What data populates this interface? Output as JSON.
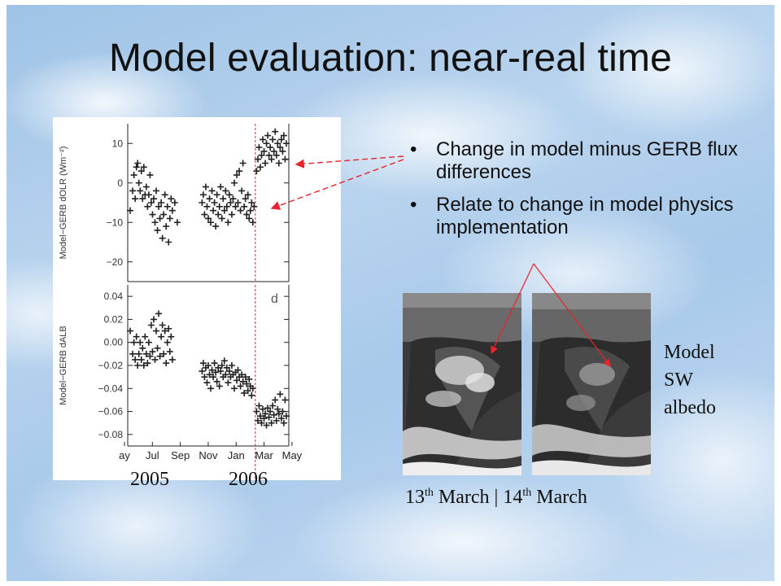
{
  "slide": {
    "title": "Model evaluation: near-real time",
    "bullets": [
      "Change in model minus GERB flux differences",
      "Relate to change in model physics implementation"
    ],
    "year_labels": [
      "2005",
      "2006"
    ],
    "satellite_caption": {
      "first_day": "13",
      "first_sup": "th",
      "first_month": " March | 14",
      "second_sup": "th",
      "second_month": " March"
    },
    "model_label": [
      "Model",
      "SW",
      "albedo"
    ],
    "colors": {
      "arrow": "#e8232e",
      "marker": "#222222",
      "change_line": "#e8232e"
    }
  },
  "chart_data": [
    {
      "type": "scatter",
      "ylabel": "Model−GERB dOLR (Wm⁻²)",
      "yticks": [
        "10",
        "0",
        "−10",
        "−20"
      ],
      "ylim": [
        -25,
        15
      ],
      "xlim": [
        0,
        13
      ],
      "model_change_x": 10.3,
      "points": [
        [
          0.2,
          -7
        ],
        [
          0.4,
          -2
        ],
        [
          0.5,
          2
        ],
        [
          0.6,
          -4
        ],
        [
          0.7,
          4
        ],
        [
          0.8,
          5
        ],
        [
          0.9,
          0
        ],
        [
          1.0,
          -2
        ],
        [
          1.1,
          3
        ],
        [
          1.2,
          -4
        ],
        [
          1.3,
          4
        ],
        [
          1.4,
          -3
        ],
        [
          1.5,
          -1
        ],
        [
          1.6,
          -6
        ],
        [
          1.7,
          -3
        ],
        [
          1.8,
          2
        ],
        [
          1.9,
          -5
        ],
        [
          2.0,
          -8
        ],
        [
          2.1,
          -4
        ],
        [
          2.2,
          -10
        ],
        [
          2.3,
          -2
        ],
        [
          2.4,
          -12
        ],
        [
          2.5,
          -6
        ],
        [
          2.6,
          -9
        ],
        [
          2.7,
          -5
        ],
        [
          2.8,
          -14
        ],
        [
          2.9,
          -8
        ],
        [
          3.0,
          -3
        ],
        [
          3.1,
          -11
        ],
        [
          3.2,
          -6
        ],
        [
          3.3,
          -15
        ],
        [
          3.4,
          -9
        ],
        [
          3.5,
          -4
        ],
        [
          3.6,
          -7
        ],
        [
          3.8,
          -5
        ],
        [
          4.0,
          -10
        ],
        [
          6.0,
          -5
        ],
        [
          6.1,
          -3
        ],
        [
          6.2,
          -8
        ],
        [
          6.3,
          -1
        ],
        [
          6.4,
          -6
        ],
        [
          6.5,
          -9
        ],
        [
          6.6,
          -4
        ],
        [
          6.7,
          -10
        ],
        [
          6.8,
          -2
        ],
        [
          6.9,
          -7
        ],
        [
          7.0,
          -5
        ],
        [
          7.1,
          -11
        ],
        [
          7.2,
          -3
        ],
        [
          7.3,
          -8
        ],
        [
          7.4,
          -6
        ],
        [
          7.5,
          -1
        ],
        [
          7.6,
          -9
        ],
        [
          7.7,
          -4
        ],
        [
          7.8,
          -7
        ],
        [
          7.9,
          -2
        ],
        [
          8.0,
          -6
        ],
        [
          8.1,
          -10
        ],
        [
          8.2,
          -3
        ],
        [
          8.3,
          -5
        ],
        [
          8.4,
          -8
        ],
        [
          8.5,
          -4
        ],
        [
          8.6,
          0
        ],
        [
          8.7,
          -6
        ],
        [
          8.8,
          2
        ],
        [
          8.9,
          -5
        ],
        [
          9.0,
          3
        ],
        [
          9.1,
          -7
        ],
        [
          9.2,
          -2
        ],
        [
          9.3,
          5
        ],
        [
          9.4,
          -6
        ],
        [
          9.5,
          -4
        ],
        [
          9.6,
          -8
        ],
        [
          9.7,
          -3
        ],
        [
          9.8,
          -9
        ],
        [
          9.9,
          -7
        ],
        [
          10.0,
          -5
        ],
        [
          10.1,
          -10
        ],
        [
          10.2,
          -6
        ],
        [
          10.4,
          3
        ],
        [
          10.5,
          6
        ],
        [
          10.6,
          9
        ],
        [
          10.7,
          4
        ],
        [
          10.8,
          7
        ],
        [
          10.9,
          11
        ],
        [
          11.0,
          8
        ],
        [
          11.1,
          5
        ],
        [
          11.2,
          10
        ],
        [
          11.3,
          12
        ],
        [
          11.4,
          7
        ],
        [
          11.5,
          9
        ],
        [
          11.6,
          6
        ],
        [
          11.7,
          11
        ],
        [
          11.8,
          8
        ],
        [
          11.9,
          13
        ],
        [
          12.0,
          7
        ],
        [
          12.1,
          10
        ],
        [
          12.2,
          5
        ],
        [
          12.3,
          9
        ],
        [
          12.4,
          11
        ],
        [
          12.5,
          8
        ],
        [
          12.6,
          12
        ],
        [
          12.7,
          6
        ],
        [
          12.8,
          10
        ]
      ]
    },
    {
      "type": "scatter",
      "ylabel": "Model−GERB dALB",
      "panel_letter": "d",
      "yticks": [
        "0.04",
        "0.02",
        "0.00",
        "−0.02",
        "−0.04",
        "−0.06",
        "−0.08"
      ],
      "ylim": [
        -0.09,
        0.05
      ],
      "xlim": [
        0,
        13
      ],
      "model_change_x": 10.3,
      "xticks": [
        "ay",
        "Jul",
        "Sep",
        "Nov",
        "Jan",
        "Mar",
        "May"
      ],
      "points": [
        [
          0.2,
          0.01
        ],
        [
          0.4,
          -0.01
        ],
        [
          0.5,
          0.0
        ],
        [
          0.6,
          -0.015
        ],
        [
          0.7,
          0.005
        ],
        [
          0.8,
          -0.02
        ],
        [
          0.9,
          -0.01
        ],
        [
          1.0,
          0.0
        ],
        [
          1.1,
          -0.015
        ],
        [
          1.2,
          -0.005
        ],
        [
          1.3,
          -0.02
        ],
        [
          1.4,
          0.005
        ],
        [
          1.5,
          -0.01
        ],
        [
          1.6,
          -0.018
        ],
        [
          1.7,
          0.0
        ],
        [
          1.8,
          -0.012
        ],
        [
          1.9,
          0.015
        ],
        [
          2.0,
          -0.008
        ],
        [
          2.1,
          0.02
        ],
        [
          2.2,
          -0.015
        ],
        [
          2.3,
          0.01
        ],
        [
          2.4,
          -0.005
        ],
        [
          2.5,
          0.025
        ],
        [
          2.6,
          -0.012
        ],
        [
          2.7,
          0.005
        ],
        [
          2.8,
          0.015
        ],
        [
          2.9,
          -0.01
        ],
        [
          3.0,
          0.01
        ],
        [
          3.1,
          -0.018
        ],
        [
          3.2,
          0.0
        ],
        [
          3.3,
          0.012
        ],
        [
          3.4,
          -0.008
        ],
        [
          3.5,
          0.005
        ],
        [
          3.6,
          -0.015
        ],
        [
          6.0,
          -0.025
        ],
        [
          6.1,
          -0.018
        ],
        [
          6.2,
          -0.03
        ],
        [
          6.3,
          -0.022
        ],
        [
          6.4,
          -0.035
        ],
        [
          6.5,
          -0.02
        ],
        [
          6.6,
          -0.028
        ],
        [
          6.7,
          -0.04
        ],
        [
          6.8,
          -0.024
        ],
        [
          6.9,
          -0.03
        ],
        [
          7.0,
          -0.018
        ],
        [
          7.1,
          -0.026
        ],
        [
          7.2,
          -0.034
        ],
        [
          7.3,
          -0.022
        ],
        [
          7.4,
          -0.038
        ],
        [
          7.5,
          -0.025
        ],
        [
          7.6,
          -0.02
        ],
        [
          7.7,
          -0.03
        ],
        [
          7.8,
          -0.016
        ],
        [
          7.9,
          -0.028
        ],
        [
          8.0,
          -0.022
        ],
        [
          8.1,
          -0.035
        ],
        [
          8.2,
          -0.025
        ],
        [
          8.3,
          -0.03
        ],
        [
          8.4,
          -0.02
        ],
        [
          8.5,
          -0.028
        ],
        [
          8.6,
          -0.04
        ],
        [
          8.7,
          -0.026
        ],
        [
          8.8,
          -0.033
        ],
        [
          8.9,
          -0.024
        ],
        [
          9.0,
          -0.03
        ],
        [
          9.1,
          -0.038
        ],
        [
          9.2,
          -0.028
        ],
        [
          9.3,
          -0.034
        ],
        [
          9.4,
          -0.044
        ],
        [
          9.5,
          -0.03
        ],
        [
          9.6,
          -0.036
        ],
        [
          9.7,
          -0.042
        ],
        [
          9.8,
          -0.032
        ],
        [
          9.9,
          -0.038
        ],
        [
          10.0,
          -0.046
        ],
        [
          10.1,
          -0.04
        ],
        [
          10.4,
          -0.06
        ],
        [
          10.5,
          -0.068
        ],
        [
          10.6,
          -0.055
        ],
        [
          10.7,
          -0.064
        ],
        [
          10.8,
          -0.07
        ],
        [
          10.9,
          -0.058
        ],
        [
          11.0,
          -0.066
        ],
        [
          11.1,
          -0.062
        ],
        [
          11.2,
          -0.072
        ],
        [
          11.3,
          -0.057
        ],
        [
          11.4,
          -0.065
        ],
        [
          11.5,
          -0.06
        ],
        [
          11.6,
          -0.07
        ],
        [
          11.7,
          -0.055
        ],
        [
          11.8,
          -0.063
        ],
        [
          11.9,
          -0.05
        ],
        [
          12.0,
          -0.068
        ],
        [
          12.1,
          -0.058
        ],
        [
          12.2,
          -0.062
        ],
        [
          12.3,
          -0.045
        ],
        [
          12.4,
          -0.066
        ],
        [
          12.5,
          -0.06
        ],
        [
          12.6,
          -0.07
        ],
        [
          12.7,
          -0.05
        ],
        [
          12.8,
          -0.064
        ]
      ]
    }
  ]
}
